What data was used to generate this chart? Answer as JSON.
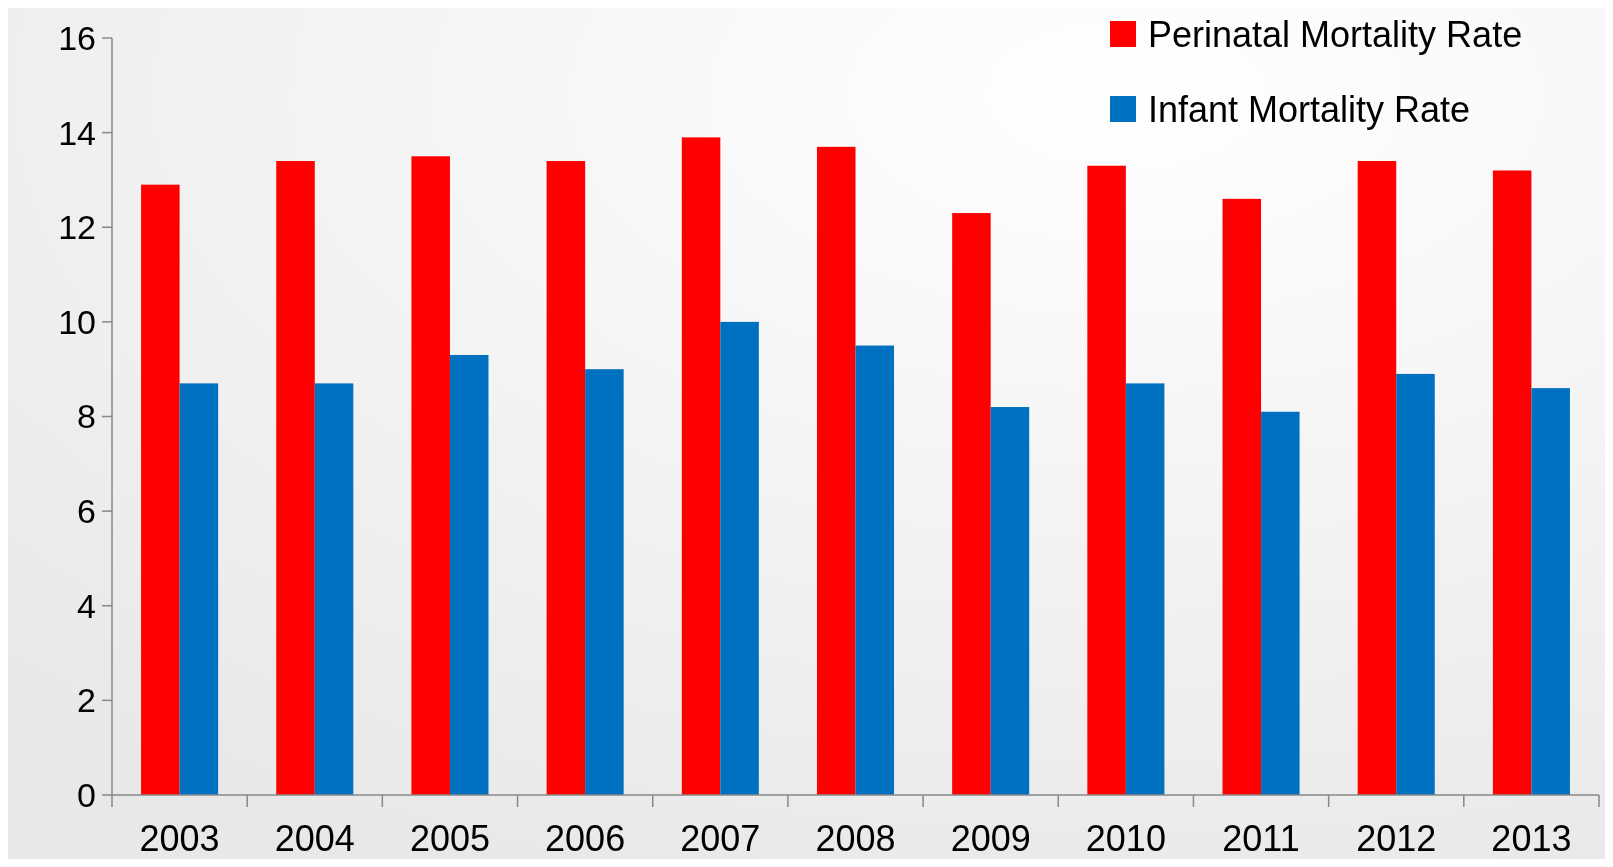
{
  "chart_data": {
    "type": "bar",
    "categories": [
      "2003",
      "2004",
      "2005",
      "2006",
      "2007",
      "2008",
      "2009",
      "2010",
      "2011",
      "2012",
      "2013"
    ],
    "series": [
      {
        "name": "Perinatal Mortality Rate",
        "color": "#ff0000",
        "values": [
          12.9,
          13.4,
          13.5,
          13.4,
          13.9,
          13.7,
          12.3,
          13.3,
          12.6,
          13.4,
          13.2
        ]
      },
      {
        "name": "Infant Mortality Rate",
        "color": "#0070c0",
        "values": [
          8.7,
          8.7,
          9.3,
          9.0,
          10.0,
          9.5,
          8.2,
          8.7,
          8.1,
          8.9,
          8.6
        ]
      }
    ],
    "ylim": [
      0,
      16
    ],
    "yticks": [
      0,
      2,
      4,
      6,
      8,
      10,
      12,
      14,
      16
    ],
    "grid": false,
    "legend": "top right"
  }
}
